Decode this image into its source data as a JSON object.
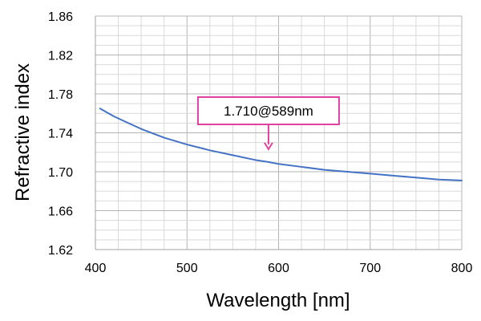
{
  "chart_data": {
    "type": "line",
    "title": "",
    "xlabel": "Wavelength [nm]",
    "ylabel": "Refractive index",
    "xlim": [
      400,
      800
    ],
    "ylim": [
      1.62,
      1.86
    ],
    "x_ticks": [
      "400",
      "500",
      "600",
      "700",
      "800"
    ],
    "y_ticks": [
      "1.62",
      "1.66",
      "1.70",
      "1.74",
      "1.78",
      "1.82",
      "1.86"
    ],
    "grid": true,
    "legend": "none",
    "series": [
      {
        "color": "#4472c4",
        "x": [
          405,
          420,
          436,
          450,
          475,
          500,
          525,
          550,
          575,
          589,
          600,
          625,
          650,
          675,
          700,
          725,
          750,
          775,
          800
        ],
        "y": [
          1.765,
          1.757,
          1.75,
          1.744,
          1.735,
          1.728,
          1.722,
          1.717,
          1.712,
          1.71,
          1.708,
          1.705,
          1.702,
          1.7,
          1.698,
          1.696,
          1.694,
          1.692,
          1.691
        ]
      }
    ],
    "annotations": [
      {
        "text": "1.710@589nm",
        "x": 589,
        "y": 1.71,
        "color": "#e040a0"
      }
    ]
  },
  "colors": {
    "line": "#4472c4",
    "annotation": "#e040a0",
    "grid": "#c8c8c8",
    "axis": "#a0a0a0"
  }
}
